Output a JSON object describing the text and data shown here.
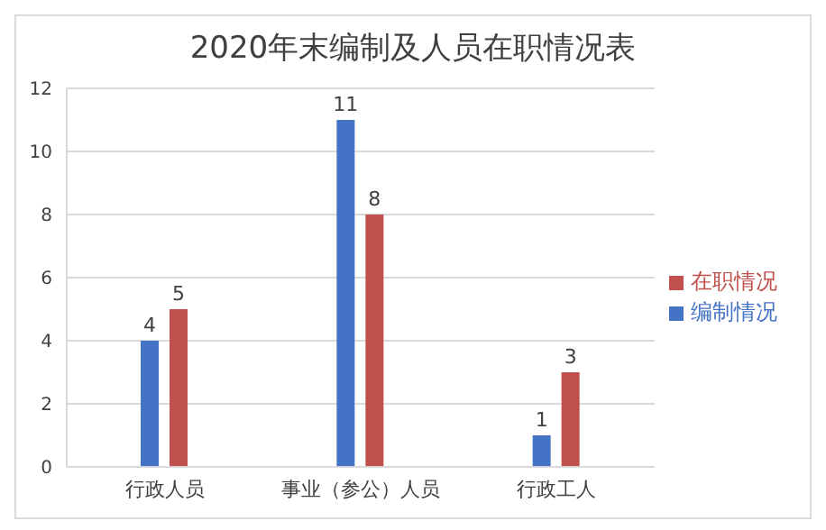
{
  "chart_data": {
    "type": "bar",
    "title": "2020年末编制及人员在职情况表",
    "categories": [
      "行政人员",
      "事业（参公）人员",
      "行政工人"
    ],
    "series": [
      {
        "name": "编制情况",
        "color": "#4472c4",
        "values": [
          4,
          11,
          1
        ]
      },
      {
        "name": "在职情况",
        "color": "#c0504d",
        "values": [
          5,
          8,
          3
        ]
      }
    ],
    "ylim": [
      0,
      12
    ],
    "yticks": [
      0,
      2,
      4,
      6,
      8,
      10,
      12
    ],
    "grid": "y",
    "legend": "right",
    "data_labels": true
  }
}
